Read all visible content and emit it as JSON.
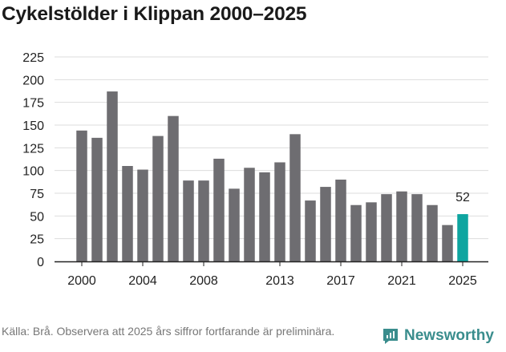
{
  "title": "Cykelstölder i Klippan 2000–2025",
  "source_text": "Källa: Brå. Observera att 2025 års siffror fortfarande är preliminära.",
  "brand": {
    "name": "Newsworthy",
    "icon": "newsworthy-logo-icon",
    "color": "#3a8d8d"
  },
  "colors": {
    "bar": "#6e6d71",
    "highlight": "#0ea5a0",
    "grid": "#dddddd",
    "axis": "#222222"
  },
  "chart_data": {
    "type": "bar",
    "title": "Cykelstölder i Klippan 2000–2025",
    "xlabel": "",
    "ylabel": "",
    "categories": [
      "2000",
      "2001",
      "2002",
      "2003",
      "2004",
      "2005",
      "2006",
      "2007",
      "2008",
      "2009",
      "2010",
      "2011",
      "2012",
      "2013",
      "2014",
      "2015",
      "2016",
      "2017",
      "2018",
      "2019",
      "2020",
      "2021",
      "2022",
      "2023",
      "2024",
      "2025"
    ],
    "values": [
      144,
      136,
      187,
      105,
      101,
      138,
      160,
      89,
      89,
      113,
      80,
      103,
      98,
      109,
      140,
      67,
      82,
      90,
      62,
      65,
      74,
      77,
      74,
      62,
      40,
      52
    ],
    "highlight_index": 25,
    "data_labels": [
      {
        "index": 25,
        "text": "52"
      }
    ],
    "ylim": [
      0,
      225
    ],
    "yticks": [
      0,
      25,
      50,
      75,
      100,
      125,
      150,
      175,
      200,
      225
    ],
    "xtick_labels": [
      "2000",
      "2004",
      "2008",
      "2013",
      "2017",
      "2021",
      "2025"
    ],
    "grid": true
  }
}
